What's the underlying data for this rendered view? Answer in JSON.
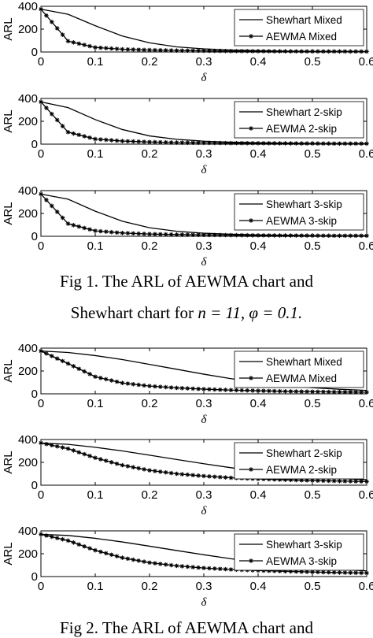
{
  "figures": [
    {
      "caption_line1": "Fig 1. The ARL of AEWMA chart and",
      "caption_line2_prefix": "Shewhart chart for ",
      "caption_math": "n = 11, φ = 0.1."
    },
    {
      "caption_line1": "Fig 2. The ARL of AEWMA chart and",
      "caption_line2_prefix": "",
      "caption_math": ""
    }
  ],
  "chart_data": [
    {
      "type": "line",
      "ylabel": "ARL",
      "xlabel": "δ",
      "xlim": [
        0,
        0.6
      ],
      "ylim": [
        0,
        400
      ],
      "xticks": [
        "0",
        "0.1",
        "0.2",
        "0.3",
        "0.4",
        "0.5",
        "0.6"
      ],
      "yticks": [
        "0",
        "200",
        "400"
      ],
      "legend_position": "top-right",
      "grid": false,
      "x": [
        0,
        0.05,
        0.1,
        0.15,
        0.2,
        0.25,
        0.3,
        0.35,
        0.4,
        0.45,
        0.5,
        0.55,
        0.6
      ],
      "series": [
        {
          "name": "Shewhart Mixed",
          "marker": "none",
          "values": [
            375,
            330,
            230,
            140,
            80,
            45,
            27,
            17,
            11,
            8,
            6,
            5,
            4
          ]
        },
        {
          "name": "AEWMA Mixed",
          "marker": "star",
          "values": [
            375,
            95,
            40,
            24,
            17,
            13,
            10,
            8,
            7,
            6,
            5,
            5,
            4
          ]
        }
      ]
    },
    {
      "type": "line",
      "ylabel": "ARL",
      "xlabel": "δ",
      "xlim": [
        0,
        0.6
      ],
      "ylim": [
        0,
        400
      ],
      "xticks": [
        "0",
        "0.1",
        "0.2",
        "0.3",
        "0.4",
        "0.5",
        "0.6"
      ],
      "yticks": [
        "0",
        "200",
        "400"
      ],
      "legend_position": "top-right",
      "grid": false,
      "x": [
        0,
        0.05,
        0.1,
        0.15,
        0.2,
        0.25,
        0.3,
        0.35,
        0.4,
        0.45,
        0.5,
        0.55,
        0.6
      ],
      "series": [
        {
          "name": "Shewhart 2-skip",
          "marker": "none",
          "values": [
            370,
            320,
            215,
            128,
            72,
            42,
            26,
            17,
            12,
            9,
            7,
            6,
            5
          ]
        },
        {
          "name": "AEWMA 2-skip",
          "marker": "star",
          "values": [
            370,
            105,
            45,
            27,
            19,
            14,
            11,
            9,
            8,
            7,
            6,
            5,
            5
          ]
        }
      ]
    },
    {
      "type": "line",
      "ylabel": "ARL",
      "xlabel": "δ",
      "xlim": [
        0,
        0.6
      ],
      "ylim": [
        0,
        400
      ],
      "xticks": [
        "0",
        "0.1",
        "0.2",
        "0.3",
        "0.4",
        "0.5",
        "0.6"
      ],
      "yticks": [
        "0",
        "200",
        "400"
      ],
      "legend_position": "top-right",
      "grid": false,
      "x": [
        0,
        0.05,
        0.1,
        0.15,
        0.2,
        0.25,
        0.3,
        0.35,
        0.4,
        0.45,
        0.5,
        0.55,
        0.6
      ],
      "series": [
        {
          "name": "Shewhart 3-skip",
          "marker": "none",
          "values": [
            370,
            325,
            220,
            132,
            75,
            44,
            27,
            18,
            12,
            9,
            7,
            6,
            5
          ]
        },
        {
          "name": "AEWMA 3-skip",
          "marker": "star",
          "values": [
            370,
            110,
            48,
            29,
            20,
            15,
            12,
            10,
            8,
            7,
            6,
            5,
            5
          ]
        }
      ]
    },
    {
      "type": "line",
      "ylabel": "ARL",
      "xlabel": "δ",
      "xlim": [
        0,
        0.6
      ],
      "ylim": [
        0,
        400
      ],
      "xticks": [
        "0",
        "0.1",
        "0.2",
        "0.3",
        "0.4",
        "0.5",
        "0.6"
      ],
      "yticks": [
        "0",
        "200",
        "400"
      ],
      "legend_position": "top-right",
      "grid": false,
      "x": [
        0,
        0.05,
        0.1,
        0.15,
        0.2,
        0.25,
        0.3,
        0.35,
        0.4,
        0.45,
        0.5,
        0.55,
        0.6
      ],
      "series": [
        {
          "name": "Shewhart Mixed",
          "marker": "none",
          "values": [
            375,
            362,
            335,
            300,
            258,
            215,
            172,
            133,
            100,
            74,
            54,
            40,
            30
          ]
        },
        {
          "name": "AEWMA Mixed",
          "marker": "star",
          "values": [
            375,
            265,
            150,
            95,
            68,
            52,
            41,
            33,
            27,
            22,
            19,
            16,
            14
          ]
        }
      ]
    },
    {
      "type": "line",
      "ylabel": "ARL",
      "xlabel": "δ",
      "xlim": [
        0,
        0.6
      ],
      "ylim": [
        0,
        400
      ],
      "xticks": [
        "0",
        "0.1",
        "0.2",
        "0.3",
        "0.4",
        "0.5",
        "0.6"
      ],
      "yticks": [
        "0",
        "200",
        "400"
      ],
      "legend_position": "top-right",
      "grid": false,
      "x": [
        0,
        0.05,
        0.1,
        0.15,
        0.2,
        0.25,
        0.3,
        0.35,
        0.4,
        0.45,
        0.5,
        0.55,
        0.6
      ],
      "series": [
        {
          "name": "Shewhart 2-skip",
          "marker": "none",
          "values": [
            370,
            358,
            332,
            300,
            263,
            225,
            188,
            153,
            122,
            96,
            76,
            60,
            48
          ]
        },
        {
          "name": "AEWMA 2-skip",
          "marker": "star",
          "values": [
            370,
            320,
            240,
            175,
            130,
            100,
            80,
            65,
            55,
            47,
            41,
            36,
            32
          ]
        }
      ]
    },
    {
      "type": "line",
      "ylabel": "ARL",
      "xlabel": "δ",
      "xlim": [
        0,
        0.6
      ],
      "ylim": [
        0,
        400
      ],
      "xticks": [
        "0",
        "0.1",
        "0.2",
        "0.3",
        "0.4",
        "0.5",
        "0.6"
      ],
      "yticks": [
        "0",
        "200",
        "400"
      ],
      "legend_position": "top-right",
      "grid": false,
      "x": [
        0,
        0.05,
        0.1,
        0.15,
        0.2,
        0.25,
        0.3,
        0.35,
        0.4,
        0.45,
        0.5,
        0.55,
        0.6
      ],
      "series": [
        {
          "name": "Shewhart 3-skip",
          "marker": "none",
          "values": [
            370,
            360,
            335,
            303,
            266,
            228,
            191,
            156,
            125,
            99,
            78,
            62,
            50
          ]
        },
        {
          "name": "AEWMA 3-skip",
          "marker": "star",
          "values": [
            370,
            315,
            230,
            165,
            122,
            94,
            75,
            62,
            53,
            46,
            40,
            35,
            31
          ]
        }
      ]
    }
  ]
}
